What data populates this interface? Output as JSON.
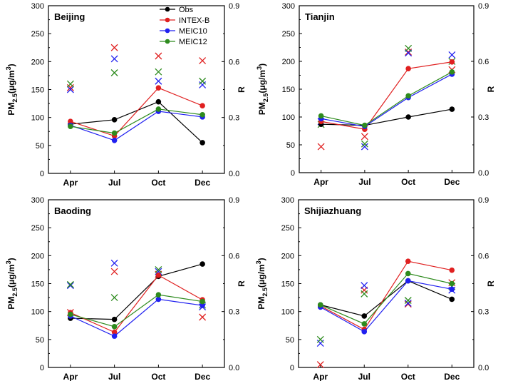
{
  "colors": {
    "obs": "#000000",
    "intexb": "#e02020",
    "meic10": "#2020f0",
    "meic12": "#2e8b1e"
  },
  "legend": [
    "Obs",
    "INTEX-B",
    "MEIC10",
    "MEIC12"
  ],
  "chart_data": [
    {
      "type": "line",
      "title": "Beijing",
      "categories": [
        "Apr",
        "Jul",
        "Oct",
        "Dec"
      ],
      "ylabel": "PM2.5(μg/m3)",
      "ylabel_parts": {
        "base": "PM",
        "sub": "2.5",
        "mid": "(μg/m",
        "sup": "3",
        "end": ")"
      },
      "y2label": "R",
      "ylim": [
        0,
        300
      ],
      "yticks": [
        "0",
        "50",
        "100",
        "150",
        "200",
        "250",
        "300"
      ],
      "y2lim": [
        0,
        0.9
      ],
      "y2ticks": [
        "0.0",
        "0.3",
        "0.6",
        "0.9"
      ],
      "series": [
        {
          "name": "Obs",
          "values": [
            88,
            96,
            128,
            55
          ]
        },
        {
          "name": "INTEX-B",
          "values": [
            93,
            67,
            153,
            121
          ]
        },
        {
          "name": "MEIC10",
          "values": [
            86,
            59,
            111,
            101
          ]
        },
        {
          "name": "MEIC12",
          "values": [
            84,
            72,
            115,
            105
          ]
        }
      ],
      "r_values": [
        {
          "name": "INTEX-B",
          "values": [
            0.46,
            0.675,
            0.63,
            0.605
          ]
        },
        {
          "name": "MEIC10",
          "values": [
            0.45,
            0.615,
            0.495,
            0.475
          ]
        },
        {
          "name": "MEIC12",
          "values": [
            0.48,
            0.54,
            0.545,
            0.495
          ]
        }
      ]
    },
    {
      "type": "line",
      "title": "Tianjin",
      "categories": [
        "Apr",
        "Jul",
        "Oct",
        "Dec"
      ],
      "ylabel": "PM2.5(μg/m3)",
      "ylabel_parts": {
        "base": "PM",
        "sub": "2.5",
        "mid": "(μg/m",
        "sup": "3",
        "end": ")"
      },
      "y2label": "R",
      "ylim": [
        0,
        300
      ],
      "yticks": [
        "0",
        "50",
        "100",
        "150",
        "200",
        "250",
        "300"
      ],
      "y2lim": [
        0,
        0.9
      ],
      "y2ticks": [
        "0.0",
        "0.3",
        "0.6",
        "0.9"
      ],
      "series": [
        {
          "name": "Obs",
          "values": [
            87,
            85,
            100,
            114
          ]
        },
        {
          "name": "INTEX-B",
          "values": [
            92,
            78,
            187,
            199
          ]
        },
        {
          "name": "MEIC10",
          "values": [
            97,
            83,
            135,
            177
          ]
        },
        {
          "name": "MEIC12",
          "values": [
            102,
            85,
            138,
            181
          ]
        }
      ],
      "r_values": [
        {
          "name": "INTEX-B",
          "values": [
            0.14,
            0.195,
            0.65,
            0.555
          ]
        },
        {
          "name": "MEIC10",
          "values": [
            0.275,
            0.14,
            0.645,
            0.635
          ]
        },
        {
          "name": "MEIC12",
          "values": [
            0.26,
            0.155,
            0.67,
            0.6
          ]
        }
      ]
    },
    {
      "type": "line",
      "title": "Baoding",
      "categories": [
        "Apr",
        "Jul",
        "Oct",
        "Dec"
      ],
      "ylabel": "PM2.5(μg/m3)",
      "ylabel_parts": {
        "base": "PM",
        "sub": "2.5",
        "mid": "(μg/m",
        "sup": "3",
        "end": ")"
      },
      "y2label": "R",
      "ylim": [
        0,
        300
      ],
      "yticks": [
        "0",
        "50",
        "100",
        "150",
        "200",
        "250",
        "300"
      ],
      "y2lim": [
        0,
        0.9
      ],
      "y2ticks": [
        "0.0",
        "0.3",
        "0.6",
        "0.9"
      ],
      "series": [
        {
          "name": "Obs",
          "values": [
            88,
            86,
            163,
            185
          ]
        },
        {
          "name": "INTEX-B",
          "values": [
            98,
            63,
            165,
            121
          ]
        },
        {
          "name": "MEIC10",
          "values": [
            92,
            56,
            122,
            111
          ]
        },
        {
          "name": "MEIC12",
          "values": [
            95,
            73,
            130,
            118
          ]
        }
      ],
      "r_values": [
        {
          "name": "INTEX-B",
          "values": [
            0.295,
            0.515,
            0.5,
            0.27
          ]
        },
        {
          "name": "MEIC10",
          "values": [
            0.44,
            0.56,
            0.515,
            0.325
          ]
        },
        {
          "name": "MEIC12",
          "values": [
            0.445,
            0.375,
            0.525,
            0.335
          ]
        }
      ]
    },
    {
      "type": "line",
      "title": "Shijiazhuang",
      "categories": [
        "Apr",
        "Jul",
        "Oct",
        "Dec"
      ],
      "ylabel": "PM2.5(μg/m3)",
      "ylabel_parts": {
        "base": "PM",
        "sub": "2.5",
        "mid": "(μg/m",
        "sup": "3",
        "end": ")"
      },
      "y2label": "R",
      "ylim": [
        0,
        300
      ],
      "yticks": [
        "0",
        "50",
        "100",
        "150",
        "200",
        "250",
        "300"
      ],
      "y2lim": [
        0,
        0.9
      ],
      "y2ticks": [
        "0.0",
        "0.3",
        "0.6",
        "0.9"
      ],
      "series": [
        {
          "name": "Obs",
          "values": [
            112,
            92,
            155,
            122
          ]
        },
        {
          "name": "INTEX-B",
          "values": [
            110,
            68,
            190,
            174
          ]
        },
        {
          "name": "MEIC10",
          "values": [
            108,
            64,
            155,
            140
          ]
        },
        {
          "name": "MEIC12",
          "values": [
            112,
            78,
            168,
            150
          ]
        }
      ],
      "r_values": [
        {
          "name": "INTEX-B",
          "values": [
            0.015,
            0.415,
            0.34,
            0.455
          ]
        },
        {
          "name": "MEIC10",
          "values": [
            0.13,
            0.44,
            0.345,
            0.415
          ]
        },
        {
          "name": "MEIC12",
          "values": [
            0.15,
            0.395,
            0.36,
            0.435
          ]
        }
      ]
    }
  ]
}
